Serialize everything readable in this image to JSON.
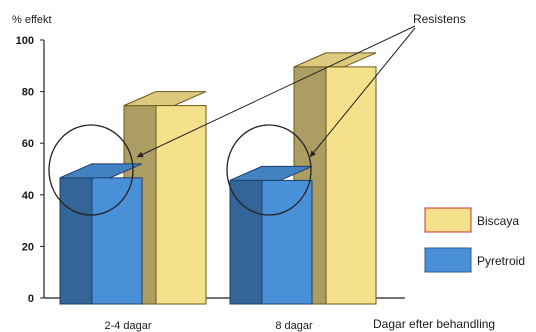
{
  "chart_data": {
    "type": "bar",
    "ylabel": "% effekt",
    "xlabel": "Dagar efter behandling",
    "ylim": [
      0,
      100
    ],
    "yticks": [
      0,
      20,
      40,
      60,
      80,
      100
    ],
    "categories": [
      "2-4 dagar",
      "8 dagar"
    ],
    "series": [
      {
        "name": "Pyretroid",
        "values": [
          52,
          51
        ],
        "color": "#4a90d9"
      },
      {
        "name": "Biscaya",
        "values": [
          80,
          95
        ],
        "color": "#f5e08c"
      }
    ],
    "annotation": "Resistens",
    "legend_position": "right",
    "grid": false,
    "style": "3d"
  }
}
